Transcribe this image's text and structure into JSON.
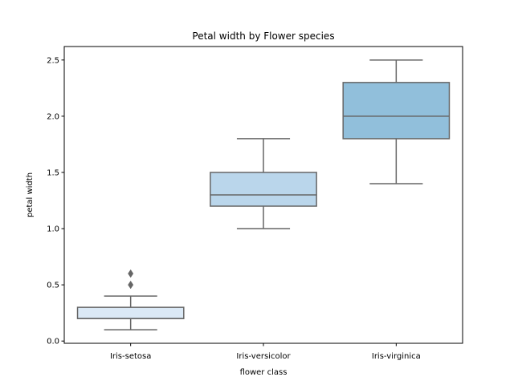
{
  "chart_data": {
    "type": "box",
    "title": "Petal width by Flower species",
    "xlabel": "flower class",
    "ylabel": "petal width",
    "ylim": [
      -0.02,
      2.62
    ],
    "yticks": [
      0.0,
      0.5,
      1.0,
      1.5,
      2.0,
      2.5
    ],
    "ytick_labels": [
      "0.0",
      "0.5",
      "1.0",
      "1.5",
      "2.0",
      "2.5"
    ],
    "grid": false,
    "legend": "none",
    "categories": [
      "Iris-setosa",
      "Iris-versicolor",
      "Iris-virginica"
    ],
    "boxes": [
      {
        "category": "Iris-setosa",
        "whisker_low": 0.1,
        "q1": 0.2,
        "median": 0.2,
        "q3": 0.3,
        "whisker_high": 0.4,
        "outliers": [
          0.5,
          0.6
        ],
        "color": "#dbe9f6"
      },
      {
        "category": "Iris-versicolor",
        "whisker_low": 1.0,
        "q1": 1.2,
        "median": 1.3,
        "q3": 1.5,
        "whisker_high": 1.8,
        "outliers": [],
        "color": "#bad6eb"
      },
      {
        "category": "Iris-virginica",
        "whisker_low": 1.4,
        "q1": 1.8,
        "median": 2.0,
        "q3": 2.3,
        "whisker_high": 2.5,
        "outliers": [],
        "color": "#91bfdb"
      }
    ],
    "line_color": "#666666"
  }
}
